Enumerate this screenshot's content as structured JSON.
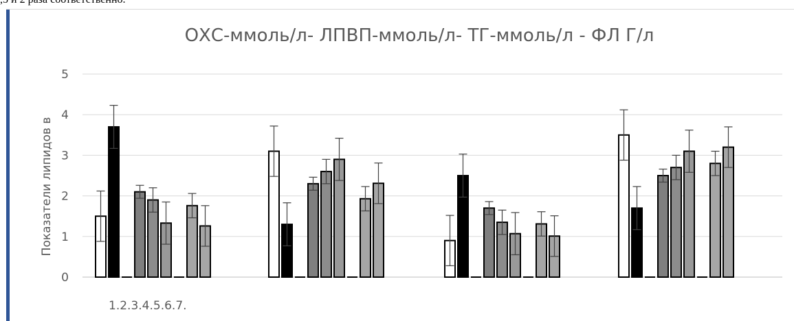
{
  "page": {
    "top_text": ",5 и 2 раза соответственно."
  },
  "chart_data": {
    "type": "bar",
    "title": "ОХС-ммоль/л- ЛПВП-ммоль/л- ТГ-ммоль/л - ФЛ Г/л",
    "ylabel": "Показатели липидов в",
    "xlabel": "",
    "x_tick_label": "1.2.3.4.5.6.7.",
    "ylim": [
      0,
      5
    ],
    "yticks": [
      0,
      1,
      2,
      3,
      4,
      5
    ],
    "grid": true,
    "categories": [
      "ОХС",
      "ЛПВП",
      "ТГ",
      "ФЛ"
    ],
    "series": [
      {
        "color": "#ffffff",
        "values": [
          1.5,
          3.1,
          0.9,
          3.5
        ],
        "errors": [
          0.62,
          0.62,
          0.62,
          0.62
        ]
      },
      {
        "color": "#000000",
        "values": [
          3.7,
          1.3,
          2.5,
          1.7
        ],
        "errors": [
          0.53,
          0.53,
          0.53,
          0.53
        ]
      },
      {
        "color": "#ffffff",
        "values": [
          0,
          0,
          0,
          0
        ],
        "errors": [
          0,
          0,
          0,
          0
        ]
      },
      {
        "color": "#7f7f7f",
        "values": [
          2.1,
          2.3,
          1.7,
          2.5
        ],
        "errors": [
          0.16,
          0.16,
          0.16,
          0.16
        ]
      },
      {
        "color": "#8c8c8c",
        "values": [
          1.9,
          2.6,
          1.35,
          2.7
        ],
        "errors": [
          0.3,
          0.3,
          0.3,
          0.3
        ]
      },
      {
        "color": "#999999",
        "values": [
          1.33,
          2.9,
          1.07,
          3.1
        ],
        "errors": [
          0.52,
          0.52,
          0.52,
          0.52
        ]
      },
      {
        "color": "#ffffff",
        "values": [
          0,
          0,
          0,
          0
        ],
        "errors": [
          0,
          0,
          0,
          0
        ]
      },
      {
        "color": "#a6a6a6",
        "values": [
          1.76,
          1.93,
          1.31,
          2.8
        ],
        "errors": [
          0.3,
          0.3,
          0.3,
          0.3
        ]
      },
      {
        "color": "#a6a6a6",
        "values": [
          1.26,
          2.31,
          1.01,
          3.2
        ],
        "errors": [
          0.5,
          0.5,
          0.5,
          0.5
        ]
      }
    ]
  }
}
